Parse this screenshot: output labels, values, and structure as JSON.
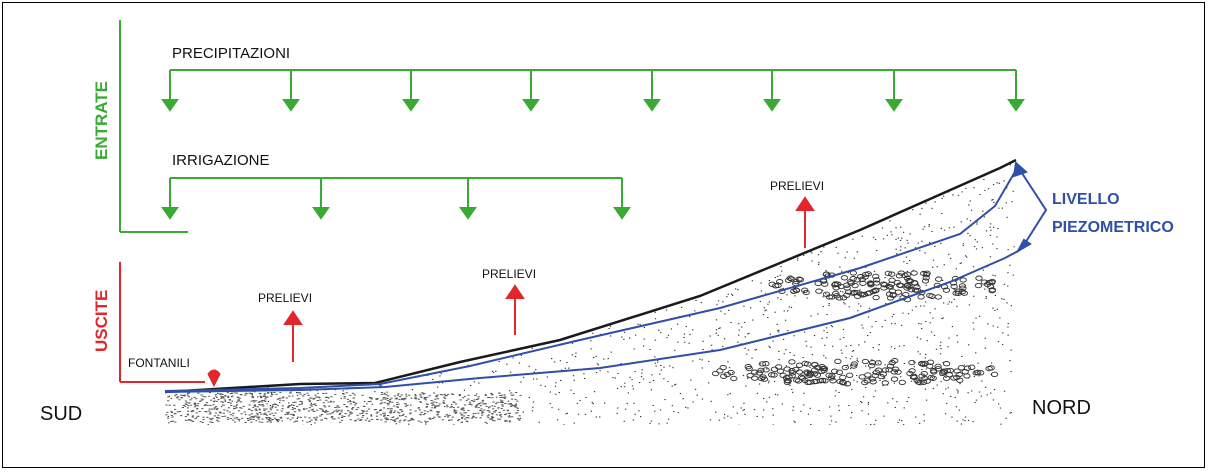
{
  "labels": {
    "entrate": "ENTRATE",
    "uscite": "USCITE",
    "precipitazioni": "PRECIPITAZIONI",
    "irrigazione": "IRRIGAZIONE",
    "prelievi_1": "PRELIEVI",
    "prelievi_2": "PRELIEVI",
    "prelievi_3": "PRELIEVI",
    "fontanili": "FONTANILI",
    "livello_line1": "LIVELLO",
    "livello_line2": "PIEZOMETRICO",
    "sud": "SUD",
    "nord": "NORD"
  },
  "colors": {
    "inputs": "#3aaa35",
    "outputs": "#e3262b",
    "water_level": "#2f4fa8",
    "ground": "#1a1a1a"
  }
}
